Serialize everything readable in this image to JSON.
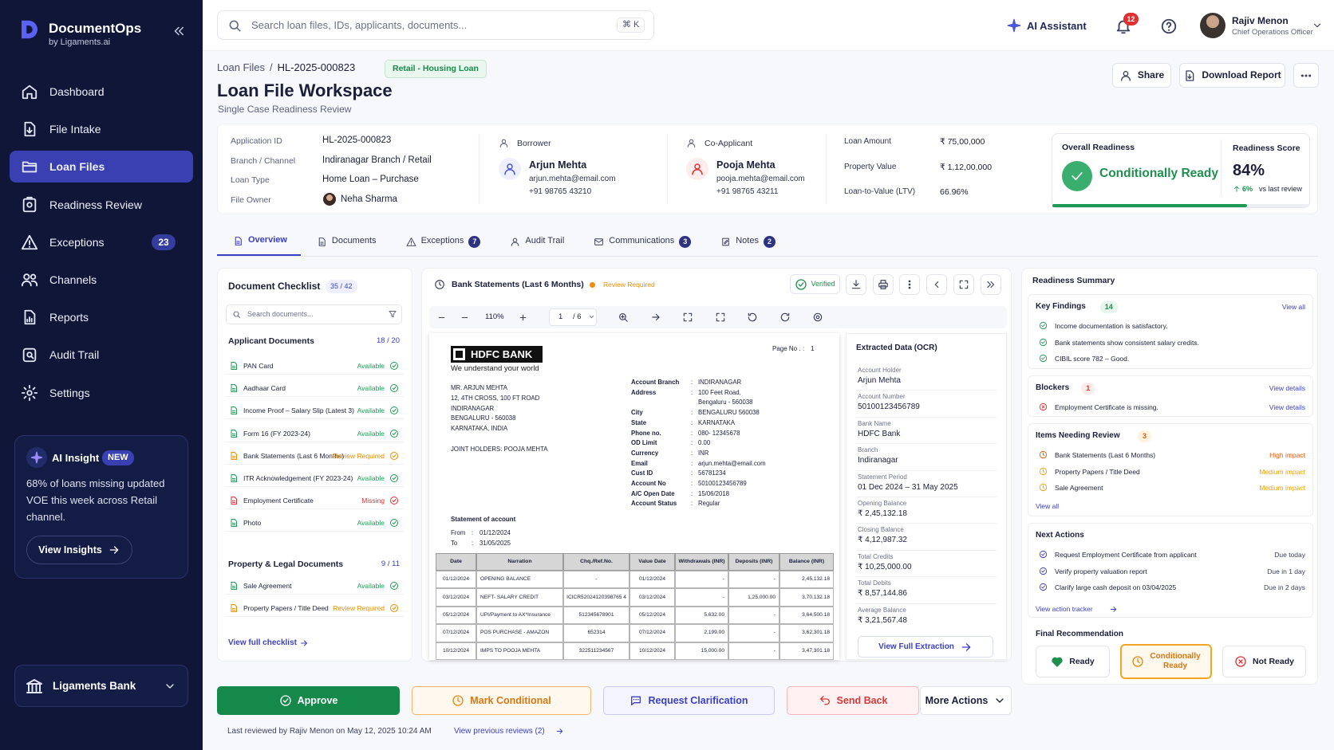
{
  "sidebar": {
    "brand": "DocumentOps",
    "brand_sub": "by Ligaments.ai",
    "nav": [
      {
        "label": "Dashboard"
      },
      {
        "label": "File Intake"
      },
      {
        "label": "Loan Files"
      },
      {
        "label": "Readiness Review"
      },
      {
        "label": "Exceptions",
        "badge": "23"
      },
      {
        "label": "Channels"
      },
      {
        "label": "Reports"
      },
      {
        "label": "Audit Trail"
      },
      {
        "label": "Settings"
      }
    ],
    "insight": {
      "title": "AI Insight",
      "tag": "NEW",
      "text": "68% of loans missing updated VOE this week across Retail channel.",
      "button": "View Insights"
    },
    "org": "Ligaments Bank"
  },
  "topbar": {
    "search": "Search loan files, IDs, applicants, documents...",
    "shortcut": "⌘ K",
    "assistant": "AI Assistant",
    "notifications": "12",
    "user_name": "Rajiv Menon",
    "user_role": "Chief Operations Officer"
  },
  "header": {
    "breadcrumb": {
      "parent": "Loan Files",
      "separator": "/",
      "current": "HL-2025-000823"
    },
    "tag": "Retail - Housing Loan",
    "title": "Loan File Workspace",
    "subtitle": "Single Case Readiness Review",
    "actions": [
      "Share",
      "Download Report"
    ]
  },
  "summary": {
    "fields": [
      {
        "label": "Application ID",
        "value": "HL-2025-000823"
      },
      {
        "label": "Branch / Channel",
        "value": "Indiranagar Branch / Retail"
      },
      {
        "label": "Loan Type",
        "value": "Home Loan – Purchase"
      },
      {
        "label": "File Owner",
        "value": "Neha Sharma"
      }
    ],
    "borrower": {
      "label": "Borrower",
      "name": "Arjun Mehta",
      "email": "arjun.mehta@email.com",
      "phone": "+91 98765 43210"
    },
    "co_applicant": {
      "label": "Co-Applicant",
      "name": "Pooja Mehta",
      "email": "pooja.mehta@email.com",
      "phone": "+91 98765 43211"
    },
    "amounts": [
      {
        "label": "Loan Amount",
        "value": "₹ 75,00,000"
      },
      {
        "label": "Property Value",
        "value": "₹ 1,12,00,000"
      },
      {
        "label": "Loan-to-Value (LTV)",
        "value": "66.96%"
      }
    ],
    "readiness": {
      "label": "Overall Readiness",
      "status": "Conditionally Ready",
      "score_label": "Readiness Score",
      "score": "84%",
      "delta": "6%",
      "delta_note": "vs last review"
    }
  },
  "tabs": [
    {
      "label": "Overview"
    },
    {
      "label": "Documents"
    },
    {
      "label": "Exceptions",
      "badge": "7"
    },
    {
      "label": "Audit Trail"
    },
    {
      "label": "Communications",
      "badge": "3"
    },
    {
      "label": "Notes",
      "badge": "2"
    }
  ],
  "checklist": {
    "title": "Document Checklist",
    "count": "35 / 42",
    "search": "Search documents...",
    "groups": [
      {
        "title": "Applicant Documents",
        "count": "18 / 20",
        "items": [
          {
            "name": "PAN Card",
            "status": "Available",
            "color": "#1f9d55"
          },
          {
            "name": "Aadhaar Card",
            "status": "Available",
            "color": "#1f9d55"
          },
          {
            "name": "Income Proof – Salary Slip (Latest 3)",
            "status": "Available",
            "color": "#1f9d55"
          },
          {
            "name": "Form 16 (FY 2023-24)",
            "status": "Available",
            "color": "#1f9d55"
          },
          {
            "name": "Bank Statements (Last 6 Months)",
            "status": "Review Required",
            "color": "#f08c00"
          },
          {
            "name": "ITR Acknowledgement (FY 2023-24)",
            "status": "Available",
            "color": "#1f9d55"
          },
          {
            "name": "Employment Certificate",
            "status": "Missing",
            "color": "#e03131"
          },
          {
            "name": "Photo",
            "status": "Available",
            "color": "#1f9d55"
          }
        ]
      },
      {
        "title": "Property & Legal Documents",
        "count": "9 / 11",
        "items": [
          {
            "name": "Sale Agreement",
            "status": "Available",
            "color": "#1f9d55"
          },
          {
            "name": "Property Papers / Title Deed",
            "status": "Review Required",
            "color": "#f08c00"
          }
        ]
      }
    ],
    "link": "View full checklist"
  },
  "viewer": {
    "title": "Bank Statements (Last 6 Months)",
    "status": "Review Required",
    "verified": "Verified",
    "zoom": "110%",
    "page": "1",
    "pages": "/ 6",
    "statement": {
      "bank": "HDFC BANK",
      "tagline": "We understand your world",
      "page_label": "Page No .",
      "page": "1",
      "sep": ":",
      "address": [
        "MR. ARJUN MEHTA",
        "12, 4TH CROSS, 100 FT ROAD",
        "INDIRANAGAR",
        "BENGALURU - 560038",
        "KARNATAKA, INDIA"
      ],
      "joint_holders": "JOINT HOLDERS: POOJA MEHTA",
      "details": [
        {
          "label": "Account Branch",
          "lines": [
            "INDIRANAGAR"
          ]
        },
        {
          "label": "Address",
          "lines": [
            "100 Feet Road,",
            "Bengaluru - 560038"
          ]
        },
        {
          "label": "City",
          "lines": [
            "BENGALURU 560038"
          ]
        },
        {
          "label": "State",
          "lines": [
            "KARNATAKA"
          ]
        },
        {
          "label": "Phone no.",
          "lines": [
            "080- 12345678"
          ]
        },
        {
          "label": "OD Limit",
          "lines": [
            "0.00"
          ]
        },
        {
          "label": "Currency",
          "lines": [
            "INR"
          ]
        },
        {
          "label": "Email",
          "lines": [
            "arjun.mehta@email.com"
          ]
        },
        {
          "label": "Cust ID",
          "lines": [
            "56781234"
          ]
        },
        {
          "label": "Account No",
          "lines": [
            "50100123456789"
          ]
        },
        {
          "label": "A/C Open Date",
          "lines": [
            "15/06/2018"
          ]
        },
        {
          "label": "Account Status",
          "lines": [
            "Regular"
          ]
        }
      ],
      "statement_title": "Statement of account",
      "from_label": "From",
      "from": "01/12/2024",
      "to_label": "To",
      "to": "31/05/2025",
      "table": {
        "columns": [
          "Date",
          "Narration",
          "Chq./Ref.No.",
          "Value Date",
          "Withdrawals (INR)",
          "Deposits (INR)",
          "Balance (INR)"
        ],
        "rows": [
          [
            "01/12/2024",
            "OPENING BALANCE",
            "-",
            "01/12/2024",
            "-",
            "-",
            "2,45,132.18"
          ],
          [
            "03/12/2024",
            "NEFT- SALARY CREDIT",
            "ICICR52024120398765 4",
            "03/12/2024",
            "-",
            "1,25,000.00",
            "3,70,132.18"
          ],
          [
            "05/12/2024",
            "UPI/Payment to AX*Insurance",
            "512345678901",
            "05/12/2024",
            "5,632.00",
            "-",
            "3,64,500.18"
          ],
          [
            "07/12/2024",
            "POS PURCHASE - AMAZON",
            "652314",
            "07/12/2024",
            "2,199.00",
            "-",
            "3,62,301.18"
          ],
          [
            "10/12/2024",
            "IMPS TO POOJA MEHTA",
            "322511234567",
            "10/12/2024",
            "15,000.00",
            "-",
            "3,47,301.18"
          ]
        ]
      }
    },
    "ocr": {
      "title": "Extracted Data (OCR)",
      "fields": [
        {
          "label": "Account Holder",
          "value": "Arjun Mehta"
        },
        {
          "label": "Account Number",
          "value": "50100123456789"
        },
        {
          "label": "Bank Name",
          "value": "HDFC Bank"
        },
        {
          "label": "Branch",
          "value": "Indiranagar"
        },
        {
          "label": "Statement Period",
          "value": "01 Dec 2024 – 31 May 2025"
        },
        {
          "label": "Opening Balance",
          "value": "₹ 2,45,132.18"
        },
        {
          "label": "Closing Balance",
          "value": "₹ 4,12,987.32"
        },
        {
          "label": "Total Credits",
          "value": "₹ 10,25,000.00"
        },
        {
          "label": "Total Debits",
          "value": "₹ 8,57,144.86"
        },
        {
          "label": "Average Balance",
          "value": "₹ 3,21,567.48"
        }
      ],
      "button": "View Full Extraction"
    }
  },
  "readiness_summary": {
    "title": "Readiness Summary",
    "key_findings": {
      "title": "Key Findings",
      "count": "14",
      "link": "View all",
      "items": [
        "Income documentation is satisfactory.",
        "Bank statements show consistent salary credits.",
        "CIBIL score 782 – Good."
      ]
    },
    "blockers": {
      "title": "Blockers",
      "count": "1",
      "link": "View details",
      "items": [
        "Employment Certificate is missing."
      ]
    },
    "review": {
      "title": "Items Needing Review",
      "count": "3",
      "link": "View all",
      "items": [
        {
          "name": "Bank Statements (Last 6 Months)",
          "impact": "High impact",
          "color": "#e8590c"
        },
        {
          "name": "Property Papers / Title Deed",
          "impact": "Medium impact",
          "color": "#f59f00"
        },
        {
          "name": "Sale Agreement",
          "impact": "Medium impact",
          "color": "#f59f00"
        }
      ]
    },
    "next_actions": {
      "title": "Next Actions",
      "link": "View action tracker",
      "items": [
        {
          "name": "Request Employment Certificate from applicant",
          "due": "Due today"
        },
        {
          "name": "Verify property valuation report",
          "due": "Due in 1 day"
        },
        {
          "name": "Clarify large cash deposit on 03/04/2025",
          "due": "Due in 2 days"
        }
      ]
    },
    "recommendation": {
      "title": "Final Recommendation",
      "options": [
        "Ready",
        "Conditionally Ready",
        "Not Ready"
      ]
    }
  },
  "actions": [
    "Approve",
    "Mark Conditional",
    "Request Clarification",
    "Send Back",
    "More Actions"
  ],
  "footer": {
    "reviewed": "Last reviewed by Rajiv Menon on May 12, 2025 10:24 AM",
    "link": "View previous reviews (2)"
  }
}
